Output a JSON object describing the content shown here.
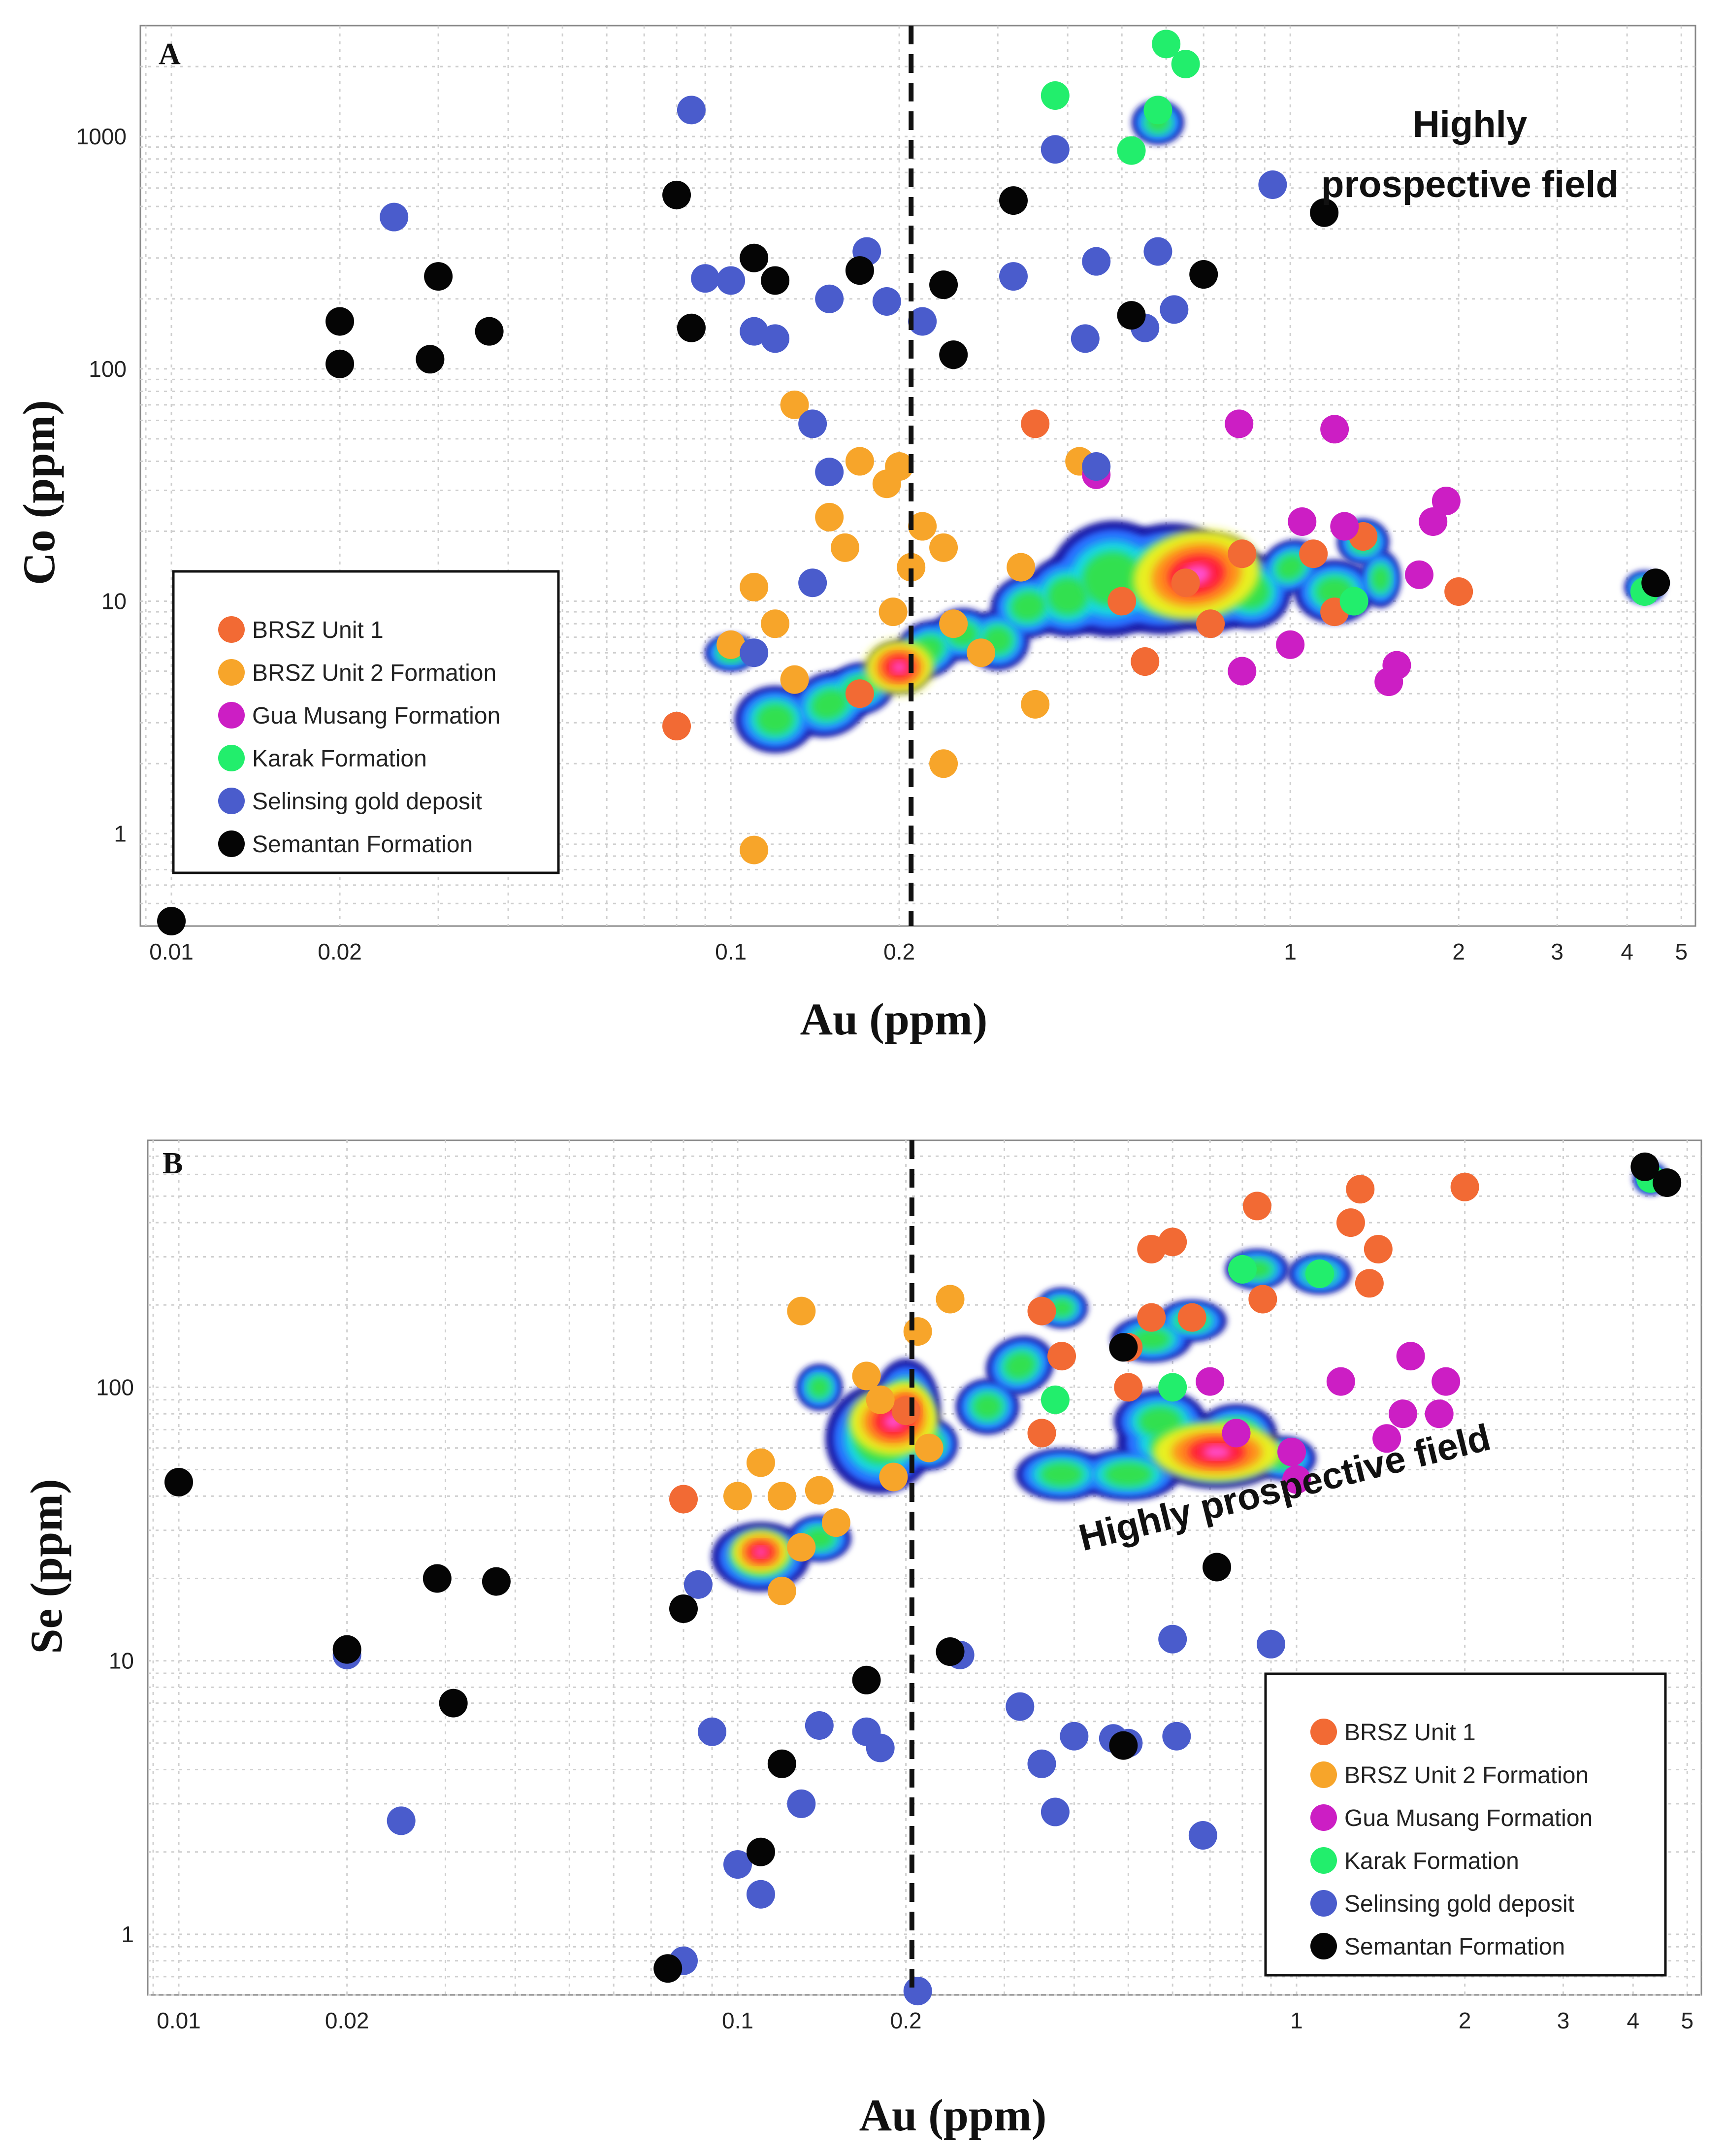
{
  "colors": {
    "BRSZ Unit 1": "#f26a34",
    "BRSZ Unit 2 Formation": "#f7a52a",
    "Gua Musang Formation": "#cc1ec4",
    "Karak Formation": "#22ee6c",
    "Selinsing gold deposit": "#4a5ccc",
    "Semantan Formation": "#050505"
  },
  "chart_data": [
    {
      "panel": "A",
      "type": "scatter",
      "xscale": "log",
      "yscale": "log",
      "xlabel": "Au (ppm)",
      "ylabel": "Co (ppm)",
      "xlim": [
        0.0088,
        5.3
      ],
      "ylim": [
        0.4,
        3000
      ],
      "xticks": [
        0.01,
        0.02,
        0.1,
        0.2,
        1,
        2,
        3,
        4,
        5
      ],
      "xtick_labels": [
        "0.01",
        "0.02",
        "0.1",
        "0.2",
        "1",
        "2",
        "3",
        "4",
        "5"
      ],
      "yticks": [
        1,
        10,
        100,
        1000
      ],
      "ytick_labels": [
        "1",
        "10",
        "100",
        "1000"
      ],
      "threshold_x": 0.21,
      "annotation": [
        "Highly",
        "prospective field"
      ],
      "legend": [
        "BRSZ Unit 1",
        "BRSZ Unit 2 Formation",
        "Gua Musang Formation",
        "Karak Formation",
        "Selinsing gold deposit",
        "Semantan Formation"
      ],
      "series": [
        {
          "name": "BRSZ Unit 1",
          "points": [
            [
              0.08,
              2.9
            ],
            [
              0.35,
              58
            ],
            [
              0.17,
              4
            ],
            [
              0.5,
              10
            ],
            [
              0.65,
              12
            ],
            [
              0.72,
              8
            ],
            [
              1.2,
              9
            ],
            [
              2.0,
              11
            ],
            [
              0.55,
              5.5
            ],
            [
              1.1,
              16
            ],
            [
              0.82,
              16
            ],
            [
              1.35,
              19
            ]
          ]
        },
        {
          "name": "BRSZ Unit 2 Formation",
          "points": [
            [
              0.11,
              0.85
            ],
            [
              0.24,
              2
            ],
            [
              0.35,
              3.6
            ],
            [
              0.1,
              6.5
            ],
            [
              0.12,
              8
            ],
            [
              0.11,
              11.5
            ],
            [
              0.13,
              4.6
            ],
            [
              0.16,
              17
            ],
            [
              0.17,
              40
            ],
            [
              0.19,
              32
            ],
            [
              0.2,
              38
            ],
            [
              0.22,
              21
            ],
            [
              0.24,
              17
            ],
            [
              0.21,
              14
            ],
            [
              0.195,
              9
            ],
            [
              0.25,
              8
            ],
            [
              0.28,
              6
            ],
            [
              0.33,
              14
            ],
            [
              0.42,
              40
            ],
            [
              0.15,
              23
            ],
            [
              0.13,
              70
            ]
          ]
        },
        {
          "name": "Gua Musang Formation",
          "points": [
            [
              0.81,
              58
            ],
            [
              1.2,
              55
            ],
            [
              0.45,
              35
            ],
            [
              0.82,
              5
            ],
            [
              1.0,
              6.5
            ],
            [
              1.5,
              4.5
            ],
            [
              1.55,
              5.3
            ],
            [
              1.7,
              13
            ],
            [
              1.8,
              22
            ],
            [
              1.9,
              27
            ],
            [
              1.05,
              22
            ],
            [
              1.25,
              21
            ]
          ]
        },
        {
          "name": "Karak Formation",
          "points": [
            [
              0.38,
              1500
            ],
            [
              0.52,
              870
            ],
            [
              0.6,
              2500
            ],
            [
              0.65,
              2050
            ],
            [
              0.58,
              1300
            ],
            [
              1.3,
              10
            ],
            [
              4.3,
              11
            ]
          ]
        },
        {
          "name": "Selinsing gold deposit",
          "points": [
            [
              0.025,
              450
            ],
            [
              0.085,
              1300
            ],
            [
              0.09,
              245
            ],
            [
              0.1,
              240
            ],
            [
              0.11,
              145
            ],
            [
              0.12,
              135
            ],
            [
              0.14,
              58
            ],
            [
              0.15,
              200
            ],
            [
              0.175,
              320
            ],
            [
              0.19,
              195
            ],
            [
              0.22,
              160
            ],
            [
              0.32,
              250
            ],
            [
              0.45,
              290
            ],
            [
              0.55,
              150
            ],
            [
              0.58,
              320
            ],
            [
              0.62,
              180
            ],
            [
              0.93,
              620
            ],
            [
              0.38,
              880
            ],
            [
              0.43,
              135
            ],
            [
              0.15,
              36
            ],
            [
              0.45,
              38
            ],
            [
              0.11,
              6
            ],
            [
              0.14,
              12
            ]
          ]
        },
        {
          "name": "Semantan Formation",
          "points": [
            [
              0.01,
              0.42
            ],
            [
              0.02,
              160
            ],
            [
              0.02,
              105
            ],
            [
              0.03,
              250
            ],
            [
              0.029,
              110
            ],
            [
              0.037,
              145
            ],
            [
              0.08,
              560
            ],
            [
              0.085,
              150
            ],
            [
              0.11,
              300
            ],
            [
              0.12,
              240
            ],
            [
              0.17,
              265
            ],
            [
              0.24,
              230
            ],
            [
              0.25,
              115
            ],
            [
              0.32,
              530
            ],
            [
              0.52,
              170
            ],
            [
              0.7,
              255
            ],
            [
              1.15,
              470
            ],
            [
              4.5,
              12
            ]
          ]
        }
      ]
    },
    {
      "panel": "B",
      "type": "scatter",
      "xscale": "log",
      "yscale": "log",
      "xlabel": "Au (ppm)",
      "ylabel": "Se (ppm)",
      "xlim": [
        0.0088,
        5.3
      ],
      "ylim": [
        0.6,
        800
      ],
      "xticks": [
        0.01,
        0.02,
        0.1,
        0.2,
        1,
        2,
        3,
        4,
        5
      ],
      "xtick_labels": [
        "0.01",
        "0.02",
        "0.1",
        "0.2",
        "1",
        "2",
        "3",
        "4",
        "5"
      ],
      "yticks": [
        1,
        10,
        100
      ],
      "ytick_labels": [
        "1",
        "10",
        "100"
      ],
      "threshold_x": 0.205,
      "annotation": [
        "Highly prospective field"
      ],
      "legend": [
        "BRSZ Unit 1",
        "BRSZ Unit 2 Formation",
        "Gua Musang Formation",
        "Karak Formation",
        "Selinsing gold deposit",
        "Semantan Formation"
      ],
      "series": [
        {
          "name": "BRSZ Unit 1",
          "points": [
            [
              0.08,
              39
            ],
            [
              0.35,
              190
            ],
            [
              0.38,
              130
            ],
            [
              0.35,
              68
            ],
            [
              0.5,
              140
            ],
            [
              0.55,
              180
            ],
            [
              0.55,
              320
            ],
            [
              0.6,
              340
            ],
            [
              0.65,
              180
            ],
            [
              0.85,
              460
            ],
            [
              0.87,
              210
            ],
            [
              1.25,
              400
            ],
            [
              1.3,
              530
            ],
            [
              1.35,
              240
            ],
            [
              1.4,
              320
            ],
            [
              2.0,
              540
            ],
            [
              0.2,
              82
            ],
            [
              0.5,
              100
            ]
          ]
        },
        {
          "name": "BRSZ Unit 2 Formation",
          "points": [
            [
              0.1,
              40
            ],
            [
              0.11,
              53
            ],
            [
              0.12,
              40
            ],
            [
              0.13,
              190
            ],
            [
              0.12,
              18
            ],
            [
              0.14,
              42
            ],
            [
              0.15,
              32
            ],
            [
              0.13,
              26
            ],
            [
              0.19,
              47
            ],
            [
              0.21,
              160
            ],
            [
              0.24,
              210
            ],
            [
              0.22,
              60
            ],
            [
              0.17,
              110
            ],
            [
              0.18,
              90
            ]
          ]
        },
        {
          "name": "Gua Musang Formation",
          "points": [
            [
              0.7,
              105
            ],
            [
              0.78,
              68
            ],
            [
              0.98,
              58
            ],
            [
              1.0,
              46
            ],
            [
              1.2,
              105
            ],
            [
              1.55,
              80
            ],
            [
              1.6,
              130
            ],
            [
              1.8,
              80
            ],
            [
              1.85,
              105
            ],
            [
              1.45,
              65
            ]
          ]
        },
        {
          "name": "Karak Formation",
          "points": [
            [
              0.37,
              90
            ],
            [
              0.6,
              100
            ],
            [
              4.3,
              580
            ],
            [
              0.8,
              270
            ],
            [
              1.1,
              260
            ]
          ]
        },
        {
          "name": "Selinsing gold deposit",
          "points": [
            [
              0.02,
              10.5
            ],
            [
              0.025,
              2.6
            ],
            [
              0.08,
              0.8
            ],
            [
              0.085,
              19
            ],
            [
              0.09,
              5.5
            ],
            [
              0.1,
              1.8
            ],
            [
              0.11,
              1.4
            ],
            [
              0.13,
              3
            ],
            [
              0.14,
              5.8
            ],
            [
              0.17,
              5.5
            ],
            [
              0.18,
              4.8
            ],
            [
              0.21,
              0.62
            ],
            [
              0.25,
              10.5
            ],
            [
              0.32,
              6.8
            ],
            [
              0.35,
              4.2
            ],
            [
              0.37,
              2.8
            ],
            [
              0.4,
              5.3
            ],
            [
              0.47,
              5.2
            ],
            [
              0.5,
              5
            ],
            [
              0.6,
              12
            ],
            [
              0.61,
              5.3
            ],
            [
              0.68,
              2.3
            ],
            [
              0.9,
              11.5
            ]
          ]
        },
        {
          "name": "Semantan Formation",
          "points": [
            [
              0.01,
              45
            ],
            [
              0.02,
              11
            ],
            [
              0.029,
              20
            ],
            [
              0.031,
              7
            ],
            [
              0.037,
              19.5
            ],
            [
              0.075,
              0.75
            ],
            [
              0.08,
              15.5
            ],
            [
              0.11,
              2
            ],
            [
              0.12,
              4.2
            ],
            [
              0.17,
              8.5
            ],
            [
              0.24,
              10.8
            ],
            [
              0.49,
              4.9
            ],
            [
              0.49,
              140
            ],
            [
              0.72,
              22
            ],
            [
              4.2,
              640
            ],
            [
              4.6,
              560
            ]
          ]
        }
      ]
    }
  ]
}
